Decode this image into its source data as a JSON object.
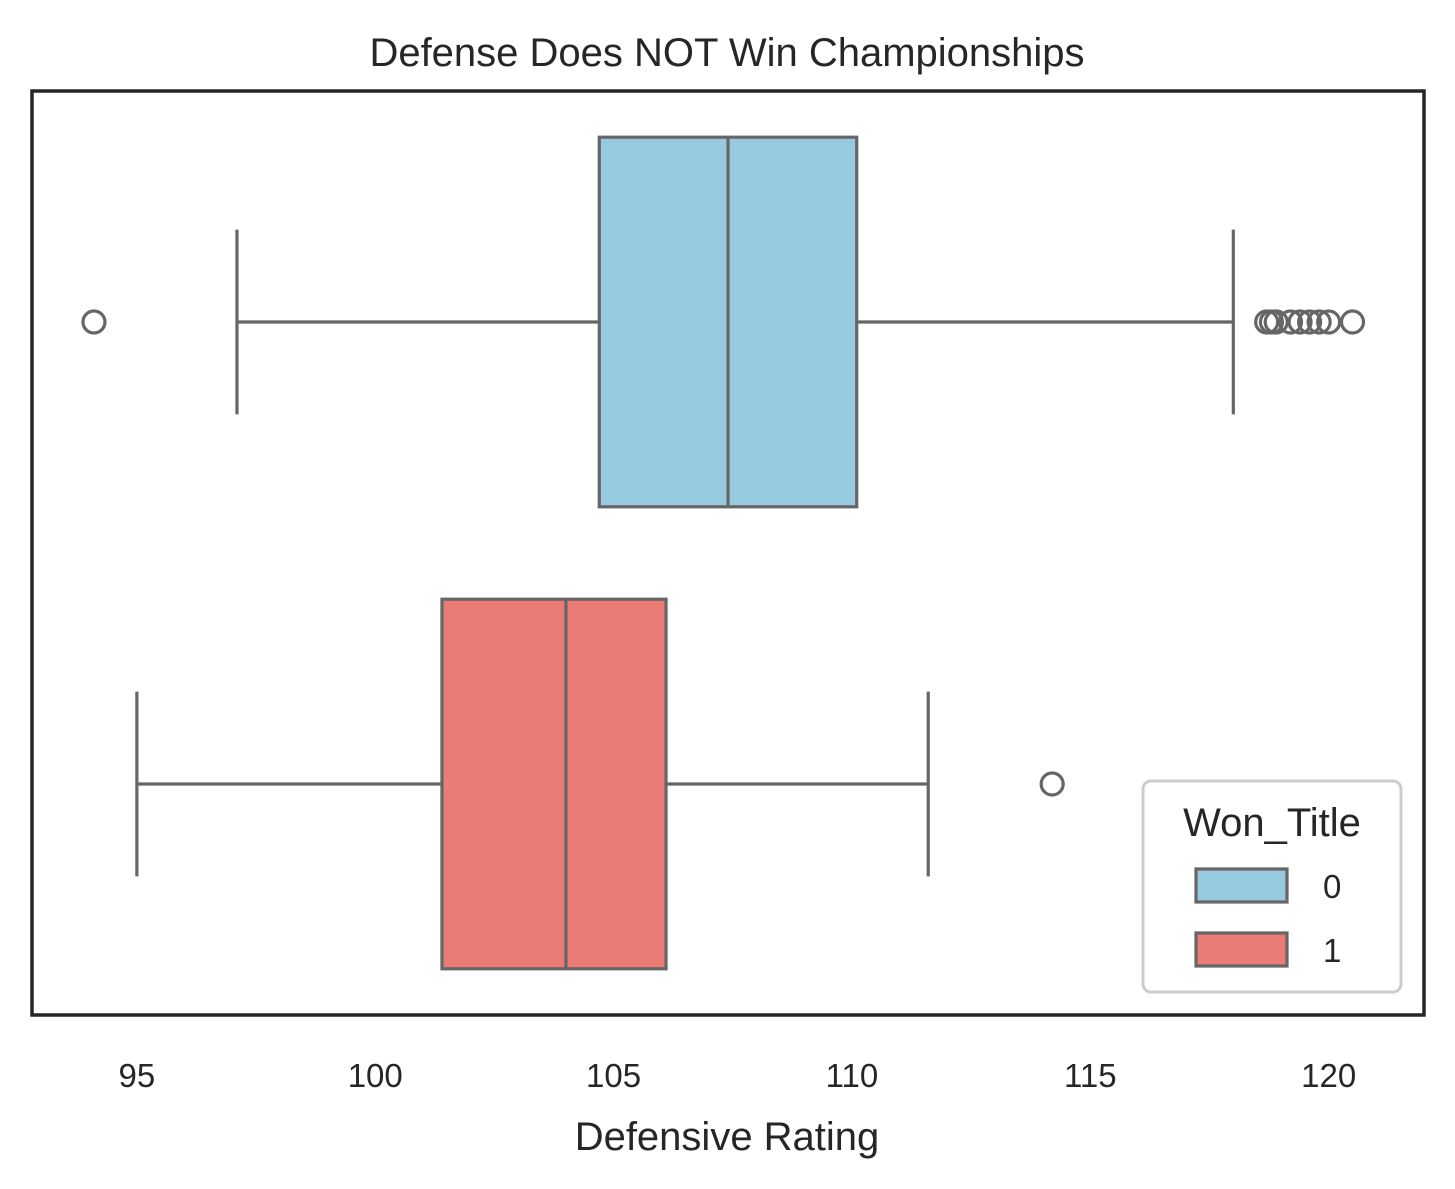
{
  "chart_data": {
    "type": "boxplot",
    "orientation": "horizontal",
    "title": "Defense Does NOT Win Championships",
    "xlabel": "Defensive Rating",
    "ylabel": "",
    "xlim": [
      92.8,
      122.0
    ],
    "xticks": [
      95,
      100,
      105,
      110,
      115,
      120
    ],
    "grid": false,
    "legend": {
      "title": "Won_Title",
      "placement": "bottom-right",
      "entries": [
        "0",
        "1"
      ]
    },
    "series": [
      {
        "name": "0",
        "color": "#97c9df",
        "whisker_low": 97.1,
        "q1": 104.7,
        "median": 107.4,
        "q3": 110.1,
        "whisker_high": 118.0,
        "outliers": [
          94.1,
          118.7,
          118.8,
          118.9,
          119.2,
          119.4,
          119.6,
          119.8,
          120.0,
          120.5
        ]
      },
      {
        "name": "1",
        "color": "#ea7b75",
        "whisker_low": 95.0,
        "q1": 101.4,
        "median": 104.0,
        "q3": 106.1,
        "whisker_high": 111.6,
        "outliers": [
          114.2
        ]
      }
    ],
    "colors": {
      "edge": "#666666",
      "frame": "#262626",
      "legend_border": "#cccccc"
    }
  }
}
